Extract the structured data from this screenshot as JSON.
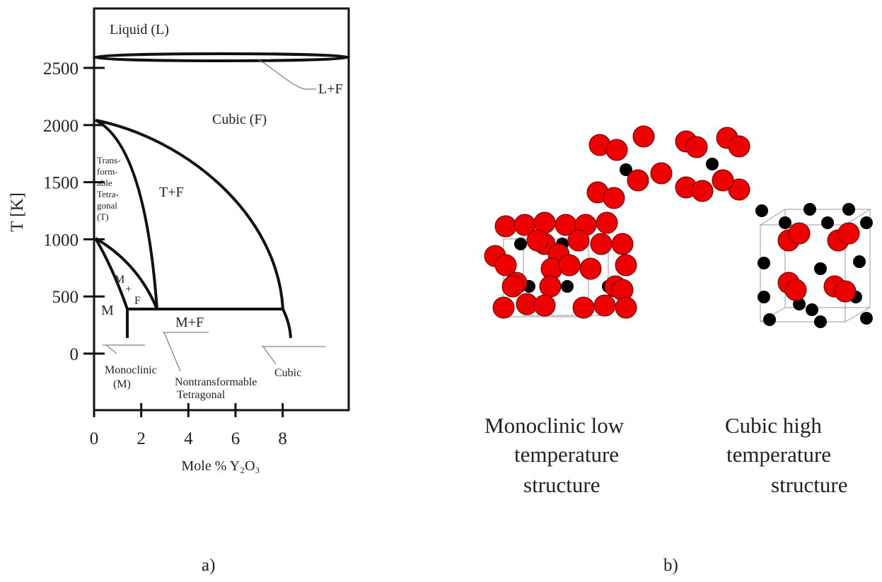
{
  "panel_a": {
    "xlim": [
      0,
      10.8
    ],
    "ylim": [
      -495,
      3020
    ],
    "xticks": [
      0,
      2,
      4,
      6,
      8
    ],
    "yticks": [
      0,
      500,
      1000,
      1500,
      2000,
      2500
    ],
    "x_label": "Mole % Y₂O₃",
    "y_label": "T [K]",
    "regions": {
      "liquid": "Liquid (L)",
      "liquid_cubic": "L+F",
      "cubic": "Cubic (F)",
      "transformable_tetragonal": [
        "Trans-",
        "form-",
        "able",
        "Tetra-",
        "gonal",
        "(T)"
      ],
      "tetragonal_cubic": "T+F",
      "monoclinic": "M",
      "plus": "+",
      "f": "F",
      "monoclinic_cubic": "M+F",
      "monoclinic_note": [
        "Monoclinic",
        "(M)"
      ],
      "nontransformable_note": [
        "Nontransformable",
        "Tetragonal"
      ],
      "cubic_note": "Cubic"
    },
    "label": "a)"
  },
  "panel_b": {
    "monoclinic_caption": [
      "Monoclinic low",
      "temperature",
      "structure"
    ],
    "cubic_caption": [
      "Cubic high",
      "temperature",
      "structure"
    ],
    "label": "b)"
  }
}
